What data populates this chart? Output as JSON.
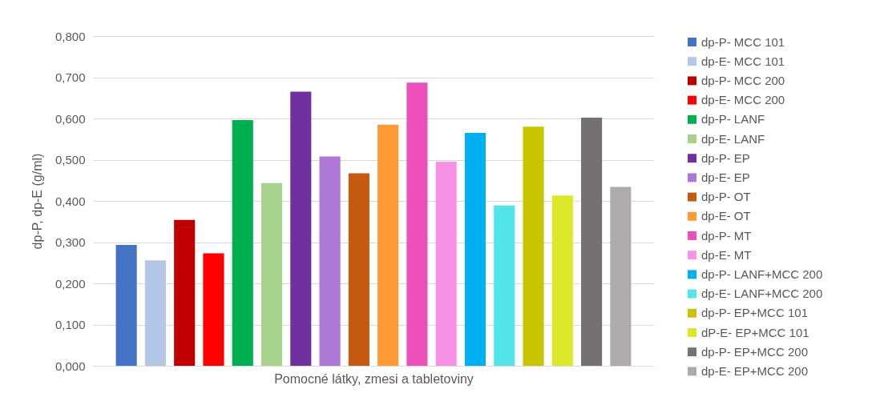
{
  "chart_data": {
    "type": "bar",
    "xlabel": "Pomocné látky, zmesi a tabletoviny",
    "ylabel": "dp-P, dp-E (g/ml)",
    "categories": [
      null
    ],
    "ylim": [
      0,
      0.8
    ],
    "yticks": [
      {
        "value": 0,
        "label": "0,000"
      },
      {
        "value": 0.1,
        "label": "0,100"
      },
      {
        "value": 0.2,
        "label": "0,200"
      },
      {
        "value": 0.3,
        "label": "0,300"
      },
      {
        "value": 0.4,
        "label": "0,400"
      },
      {
        "value": 0.5,
        "label": "0,500"
      },
      {
        "value": 0.6,
        "label": "0,600"
      },
      {
        "value": 0.7,
        "label": "0,700"
      },
      {
        "value": 0.8,
        "label": "0,800"
      }
    ],
    "grid": "y",
    "legend": "right",
    "series": [
      {
        "name": "dp-P- MCC 101",
        "color": "#4472c4",
        "values": [
          0.293
        ]
      },
      {
        "name": "dp-E- MCC 101",
        "color": "#b4c7e7",
        "values": [
          0.256
        ]
      },
      {
        "name": "dp-P- MCC 200",
        "color": "#c00000",
        "values": [
          0.354
        ]
      },
      {
        "name": "dp-E- MCC 200",
        "color": "#ff0000",
        "values": [
          0.273
        ]
      },
      {
        "name": "dp-P- LANF",
        "color": "#00b050",
        "values": [
          0.596
        ]
      },
      {
        "name": "dp-E- LANF",
        "color": "#a9d18e",
        "values": [
          0.443
        ]
      },
      {
        "name": "dp-P- EP",
        "color": "#7030a0",
        "values": [
          0.665
        ]
      },
      {
        "name": "dp-E- EP",
        "color": "#ae78d6",
        "values": [
          0.508
        ]
      },
      {
        "name": "dp-P- OT",
        "color": "#c55a11",
        "values": [
          0.467
        ]
      },
      {
        "name": "dp-E- OT",
        "color": "#ff9933",
        "values": [
          0.585
        ]
      },
      {
        "name": "dp-P- MT",
        "color": "#ec51bb",
        "values": [
          0.687
        ]
      },
      {
        "name": "dp-E- MT",
        "color": "#f792e6",
        "values": [
          0.495
        ]
      },
      {
        "name": "dp-P- LANF+MCC 200",
        "color": "#00b0f0",
        "values": [
          0.565
        ]
      },
      {
        "name": "dp-E- LANF+MCC 200",
        "color": "#53e5ea",
        "values": [
          0.389
        ]
      },
      {
        "name": "dp-P- EP+MCC 101",
        "color": "#c9c400",
        "values": [
          0.58
        ]
      },
      {
        "name": "dP-E- EP+MCC 101",
        "color": "#dbe827",
        "values": [
          0.413
        ]
      },
      {
        "name": "dp-P- EP+MCC 200",
        "color": "#767171",
        "values": [
          0.602
        ]
      },
      {
        "name": "dp-E- EP+MCC 200",
        "color": "#afabab",
        "values": [
          0.434
        ]
      }
    ]
  }
}
